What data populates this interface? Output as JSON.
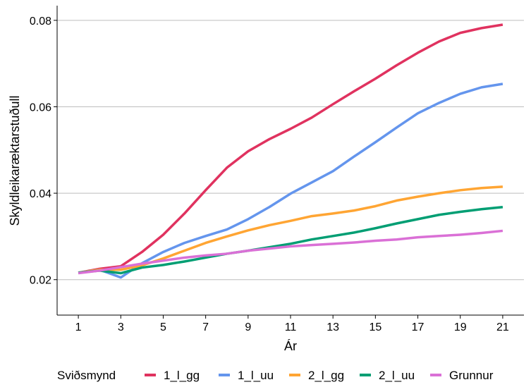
{
  "chart_data": {
    "type": "line",
    "title": "",
    "xlabel": "Ár",
    "ylabel": "Skyldleikaræktarstuðull",
    "xlim": [
      0,
      22
    ],
    "ylim": [
      0.0118,
      0.0834
    ],
    "xticks": [
      1,
      3,
      5,
      7,
      9,
      11,
      13,
      15,
      17,
      19,
      21
    ],
    "xtick_labels": [
      "1",
      "3",
      "5",
      "7",
      "9",
      "11",
      "13",
      "15",
      "17",
      "19",
      "21"
    ],
    "yticks": [
      0.02,
      0.04,
      0.06,
      0.08
    ],
    "ytick_labels": [
      "0.02",
      "0.04",
      "0.06",
      "0.08"
    ],
    "grid": "horizontal-major",
    "legend": {
      "title": "Sviðsmynd",
      "position": "bottom"
    },
    "x": [
      1,
      2,
      3,
      4,
      5,
      6,
      7,
      8,
      9,
      10,
      11,
      12,
      13,
      14,
      15,
      16,
      17,
      18,
      19,
      20,
      21
    ],
    "series": [
      {
        "name": "1_l_gg",
        "color": "#E0325F",
        "values": [
          0.0216,
          0.0225,
          0.0231,
          0.0264,
          0.0304,
          0.0353,
          0.0407,
          0.0459,
          0.0497,
          0.0525,
          0.0549,
          0.0575,
          0.0606,
          0.0636,
          0.0665,
          0.0696,
          0.0725,
          0.0751,
          0.0771,
          0.0782,
          0.079
        ]
      },
      {
        "name": "1_l_uu",
        "color": "#6495ED",
        "values": [
          0.0216,
          0.0223,
          0.0205,
          0.0238,
          0.0264,
          0.0285,
          0.0301,
          0.0316,
          0.034,
          0.0368,
          0.0399,
          0.0425,
          0.0451,
          0.0485,
          0.0518,
          0.0552,
          0.0585,
          0.0609,
          0.063,
          0.0645,
          0.0653
        ]
      },
      {
        "name": "2_l_gg",
        "color": "#FFA533",
        "values": [
          0.0216,
          0.0223,
          0.0223,
          0.0233,
          0.0249,
          0.0267,
          0.0285,
          0.03,
          0.0314,
          0.0326,
          0.0336,
          0.0347,
          0.0353,
          0.036,
          0.037,
          0.0383,
          0.0392,
          0.04,
          0.0407,
          0.0412,
          0.0415
        ]
      },
      {
        "name": "2_l_uu",
        "color": "#009E73",
        "values": [
          0.0216,
          0.0221,
          0.0215,
          0.0228,
          0.0234,
          0.0242,
          0.0251,
          0.026,
          0.0267,
          0.0275,
          0.0283,
          0.0293,
          0.0301,
          0.0309,
          0.0319,
          0.033,
          0.034,
          0.035,
          0.0357,
          0.0363,
          0.0368
        ]
      },
      {
        "name": "Grunnur",
        "color": "#DA70D6",
        "values": [
          0.0215,
          0.0221,
          0.0229,
          0.0237,
          0.0244,
          0.0251,
          0.0256,
          0.026,
          0.0267,
          0.0272,
          0.0277,
          0.028,
          0.0283,
          0.0286,
          0.029,
          0.0293,
          0.0298,
          0.0301,
          0.0304,
          0.0308,
          0.0313
        ]
      }
    ]
  }
}
